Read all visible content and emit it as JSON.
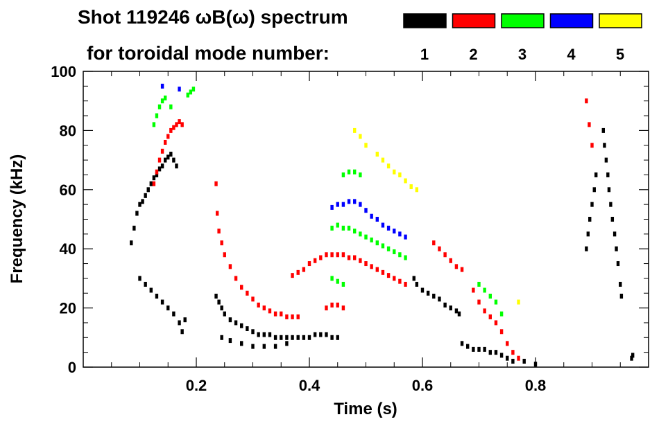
{
  "chart_data": {
    "type": "scatter",
    "title_line1": "Shot 119246 ωB(ω) spectrum",
    "title_line2": "for toroidal mode number:",
    "xlabel": "Time (s)",
    "ylabel": "Frequency (kHz)",
    "xlim": [
      0.0,
      1.0
    ],
    "ylim": [
      0,
      100
    ],
    "x_ticks": [
      0.2,
      0.4,
      0.6,
      0.8
    ],
    "x_tick_labels": [
      "0.2",
      "0.4",
      "0.6",
      "0.8"
    ],
    "y_ticks": [
      0,
      20,
      40,
      60,
      80,
      100
    ],
    "y_tick_labels": [
      "0",
      "20",
      "40",
      "60",
      "80",
      "100"
    ],
    "legend": [
      {
        "label": "1",
        "color": "#000000"
      },
      {
        "label": "2",
        "color": "#ff0000"
      },
      {
        "label": "3",
        "color": "#00ff00"
      },
      {
        "label": "4",
        "color": "#0000ff"
      },
      {
        "label": "5",
        "color": "#ffff00"
      }
    ],
    "series": [
      {
        "name": "1",
        "color": "#000000",
        "points": [
          [
            0.085,
            42
          ],
          [
            0.09,
            47
          ],
          [
            0.095,
            52
          ],
          [
            0.1,
            55
          ],
          [
            0.105,
            56
          ],
          [
            0.11,
            58
          ],
          [
            0.115,
            60
          ],
          [
            0.12,
            62
          ],
          [
            0.125,
            64
          ],
          [
            0.13,
            65
          ],
          [
            0.135,
            67
          ],
          [
            0.14,
            68
          ],
          [
            0.145,
            70
          ],
          [
            0.15,
            71
          ],
          [
            0.155,
            72
          ],
          [
            0.16,
            70
          ],
          [
            0.165,
            68
          ],
          [
            0.1,
            30
          ],
          [
            0.11,
            28
          ],
          [
            0.12,
            26
          ],
          [
            0.13,
            24
          ],
          [
            0.14,
            22
          ],
          [
            0.15,
            20
          ],
          [
            0.16,
            18
          ],
          [
            0.17,
            15
          ],
          [
            0.175,
            12
          ],
          [
            0.18,
            16
          ],
          [
            0.235,
            24
          ],
          [
            0.24,
            22
          ],
          [
            0.245,
            20
          ],
          [
            0.25,
            18
          ],
          [
            0.26,
            16
          ],
          [
            0.27,
            15
          ],
          [
            0.28,
            14
          ],
          [
            0.29,
            13
          ],
          [
            0.3,
            12
          ],
          [
            0.31,
            11
          ],
          [
            0.32,
            11
          ],
          [
            0.33,
            11
          ],
          [
            0.34,
            10
          ],
          [
            0.35,
            10
          ],
          [
            0.36,
            10
          ],
          [
            0.37,
            10
          ],
          [
            0.38,
            10
          ],
          [
            0.39,
            10
          ],
          [
            0.4,
            10
          ],
          [
            0.41,
            11
          ],
          [
            0.42,
            11
          ],
          [
            0.43,
            11
          ],
          [
            0.44,
            10
          ],
          [
            0.45,
            10
          ],
          [
            0.245,
            10
          ],
          [
            0.26,
            9
          ],
          [
            0.28,
            8
          ],
          [
            0.3,
            7
          ],
          [
            0.32,
            7
          ],
          [
            0.34,
            7
          ],
          [
            0.36,
            8
          ],
          [
            0.585,
            30
          ],
          [
            0.59,
            28
          ],
          [
            0.6,
            26
          ],
          [
            0.61,
            25
          ],
          [
            0.62,
            24
          ],
          [
            0.63,
            23
          ],
          [
            0.64,
            21
          ],
          [
            0.65,
            20
          ],
          [
            0.66,
            19
          ],
          [
            0.665,
            18
          ],
          [
            0.67,
            8
          ],
          [
            0.68,
            7
          ],
          [
            0.69,
            6
          ],
          [
            0.7,
            6
          ],
          [
            0.71,
            6
          ],
          [
            0.72,
            5
          ],
          [
            0.73,
            5
          ],
          [
            0.74,
            4
          ],
          [
            0.75,
            3
          ],
          [
            0.76,
            2
          ],
          [
            0.78,
            2
          ],
          [
            0.8,
            1
          ],
          [
            0.89,
            40
          ],
          [
            0.893,
            45
          ],
          [
            0.896,
            50
          ],
          [
            0.9,
            55
          ],
          [
            0.904,
            60
          ],
          [
            0.907,
            65
          ],
          [
            0.92,
            80
          ],
          [
            0.922,
            75
          ],
          [
            0.925,
            70
          ],
          [
            0.928,
            65
          ],
          [
            0.93,
            60
          ],
          [
            0.933,
            55
          ],
          [
            0.936,
            50
          ],
          [
            0.94,
            45
          ],
          [
            0.943,
            40
          ],
          [
            0.946,
            35
          ],
          [
            0.95,
            28
          ],
          [
            0.952,
            24
          ],
          [
            0.97,
            3
          ],
          [
            0.972,
            4
          ]
        ]
      },
      {
        "name": "2",
        "color": "#ff0000",
        "points": [
          [
            0.125,
            62
          ],
          [
            0.13,
            66
          ],
          [
            0.135,
            70
          ],
          [
            0.14,
            73
          ],
          [
            0.145,
            76
          ],
          [
            0.15,
            78
          ],
          [
            0.155,
            80
          ],
          [
            0.16,
            81
          ],
          [
            0.165,
            82
          ],
          [
            0.17,
            83
          ],
          [
            0.175,
            82
          ],
          [
            0.235,
            62
          ],
          [
            0.237,
            52
          ],
          [
            0.24,
            46
          ],
          [
            0.245,
            42
          ],
          [
            0.25,
            38
          ],
          [
            0.26,
            34
          ],
          [
            0.27,
            30
          ],
          [
            0.28,
            27
          ],
          [
            0.29,
            25
          ],
          [
            0.3,
            23
          ],
          [
            0.31,
            21
          ],
          [
            0.32,
            20
          ],
          [
            0.33,
            19
          ],
          [
            0.34,
            18
          ],
          [
            0.35,
            18
          ],
          [
            0.36,
            17
          ],
          [
            0.37,
            17
          ],
          [
            0.38,
            17
          ],
          [
            0.37,
            31
          ],
          [
            0.38,
            32
          ],
          [
            0.39,
            33
          ],
          [
            0.4,
            35
          ],
          [
            0.41,
            36
          ],
          [
            0.42,
            37
          ],
          [
            0.43,
            38
          ],
          [
            0.44,
            38
          ],
          [
            0.45,
            38
          ],
          [
            0.46,
            38
          ],
          [
            0.47,
            37
          ],
          [
            0.48,
            37
          ],
          [
            0.49,
            36
          ],
          [
            0.5,
            35
          ],
          [
            0.51,
            34
          ],
          [
            0.52,
            33
          ],
          [
            0.53,
            32
          ],
          [
            0.54,
            31
          ],
          [
            0.55,
            30
          ],
          [
            0.56,
            29
          ],
          [
            0.57,
            28
          ],
          [
            0.43,
            20
          ],
          [
            0.44,
            21
          ],
          [
            0.45,
            21
          ],
          [
            0.46,
            20
          ],
          [
            0.62,
            42
          ],
          [
            0.63,
            40
          ],
          [
            0.64,
            38
          ],
          [
            0.65,
            36
          ],
          [
            0.66,
            34
          ],
          [
            0.67,
            33
          ],
          [
            0.69,
            26
          ],
          [
            0.7,
            22
          ],
          [
            0.71,
            19
          ],
          [
            0.72,
            17
          ],
          [
            0.73,
            15
          ],
          [
            0.74,
            12
          ],
          [
            0.75,
            8
          ],
          [
            0.76,
            5
          ],
          [
            0.77,
            3
          ],
          [
            0.89,
            90
          ],
          [
            0.895,
            82
          ],
          [
            0.9,
            75
          ]
        ]
      },
      {
        "name": "3",
        "color": "#00ff00",
        "points": [
          [
            0.125,
            82
          ],
          [
            0.13,
            85
          ],
          [
            0.135,
            88
          ],
          [
            0.14,
            90
          ],
          [
            0.145,
            91
          ],
          [
            0.155,
            88
          ],
          [
            0.185,
            92
          ],
          [
            0.19,
            93
          ],
          [
            0.195,
            94
          ],
          [
            0.44,
            47
          ],
          [
            0.45,
            48
          ],
          [
            0.46,
            47
          ],
          [
            0.47,
            47
          ],
          [
            0.48,
            46
          ],
          [
            0.49,
            45
          ],
          [
            0.5,
            44
          ],
          [
            0.51,
            43
          ],
          [
            0.52,
            42
          ],
          [
            0.53,
            41
          ],
          [
            0.54,
            40
          ],
          [
            0.55,
            39
          ],
          [
            0.56,
            38
          ],
          [
            0.57,
            37
          ],
          [
            0.46,
            65
          ],
          [
            0.47,
            66
          ],
          [
            0.48,
            66
          ],
          [
            0.49,
            65
          ],
          [
            0.44,
            30
          ],
          [
            0.45,
            29
          ],
          [
            0.46,
            28
          ],
          [
            0.7,
            28
          ],
          [
            0.71,
            26
          ],
          [
            0.72,
            24
          ],
          [
            0.73,
            22
          ],
          [
            0.74,
            18
          ]
        ]
      },
      {
        "name": "4",
        "color": "#0000ff",
        "points": [
          [
            0.14,
            95
          ],
          [
            0.17,
            94
          ],
          [
            0.44,
            54
          ],
          [
            0.45,
            55
          ],
          [
            0.46,
            55
          ],
          [
            0.47,
            56
          ],
          [
            0.48,
            56
          ],
          [
            0.49,
            55
          ],
          [
            0.5,
            53
          ],
          [
            0.51,
            51
          ],
          [
            0.52,
            50
          ],
          [
            0.53,
            48
          ],
          [
            0.54,
            47
          ],
          [
            0.55,
            46
          ],
          [
            0.56,
            45
          ],
          [
            0.57,
            44
          ]
        ]
      },
      {
        "name": "5",
        "color": "#ffff00",
        "points": [
          [
            0.48,
            80
          ],
          [
            0.49,
            78
          ],
          [
            0.5,
            75
          ],
          [
            0.52,
            72
          ],
          [
            0.53,
            70
          ],
          [
            0.54,
            68
          ],
          [
            0.55,
            66
          ],
          [
            0.56,
            65
          ],
          [
            0.57,
            63
          ],
          [
            0.58,
            61
          ],
          [
            0.59,
            60
          ],
          [
            0.77,
            22
          ]
        ]
      }
    ]
  }
}
